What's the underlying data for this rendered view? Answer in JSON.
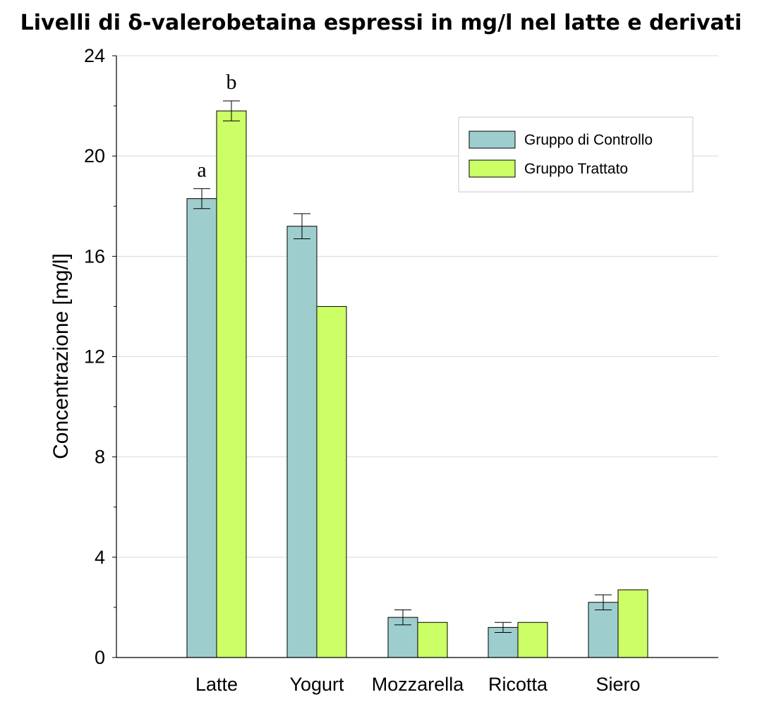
{
  "chart_data": {
    "type": "bar",
    "title": "Livelli di δ-valerobetaina espressi in mg/l nel latte e derivati",
    "ylabel": "Concentrazione [mg/l]",
    "xlabel": "",
    "ylim": [
      0,
      24
    ],
    "yticks": [
      "0",
      "4",
      "8",
      "12",
      "16",
      "20",
      "24"
    ],
    "grid": true,
    "legend_position": "top-right",
    "categories": [
      "Latte",
      "Yogurt",
      "Mozzarella",
      "Ricotta",
      "Siero"
    ],
    "series": [
      {
        "name": "Gruppo di Controllo",
        "color": "#9ecdcd",
        "values": [
          18.3,
          17.2,
          1.6,
          1.2,
          2.2
        ],
        "errors": [
          0.4,
          0.5,
          0.3,
          0.2,
          0.3
        ]
      },
      {
        "name": "Gruppo Trattato",
        "color": "#ccff66",
        "values": [
          21.8,
          14.0,
          1.4,
          1.4,
          2.7
        ],
        "errors": [
          0.4,
          null,
          null,
          null,
          null
        ]
      }
    ],
    "annotations": [
      {
        "category": "Latte",
        "series": 0,
        "text": "a"
      },
      {
        "category": "Latte",
        "series": 1,
        "text": "b"
      }
    ]
  }
}
